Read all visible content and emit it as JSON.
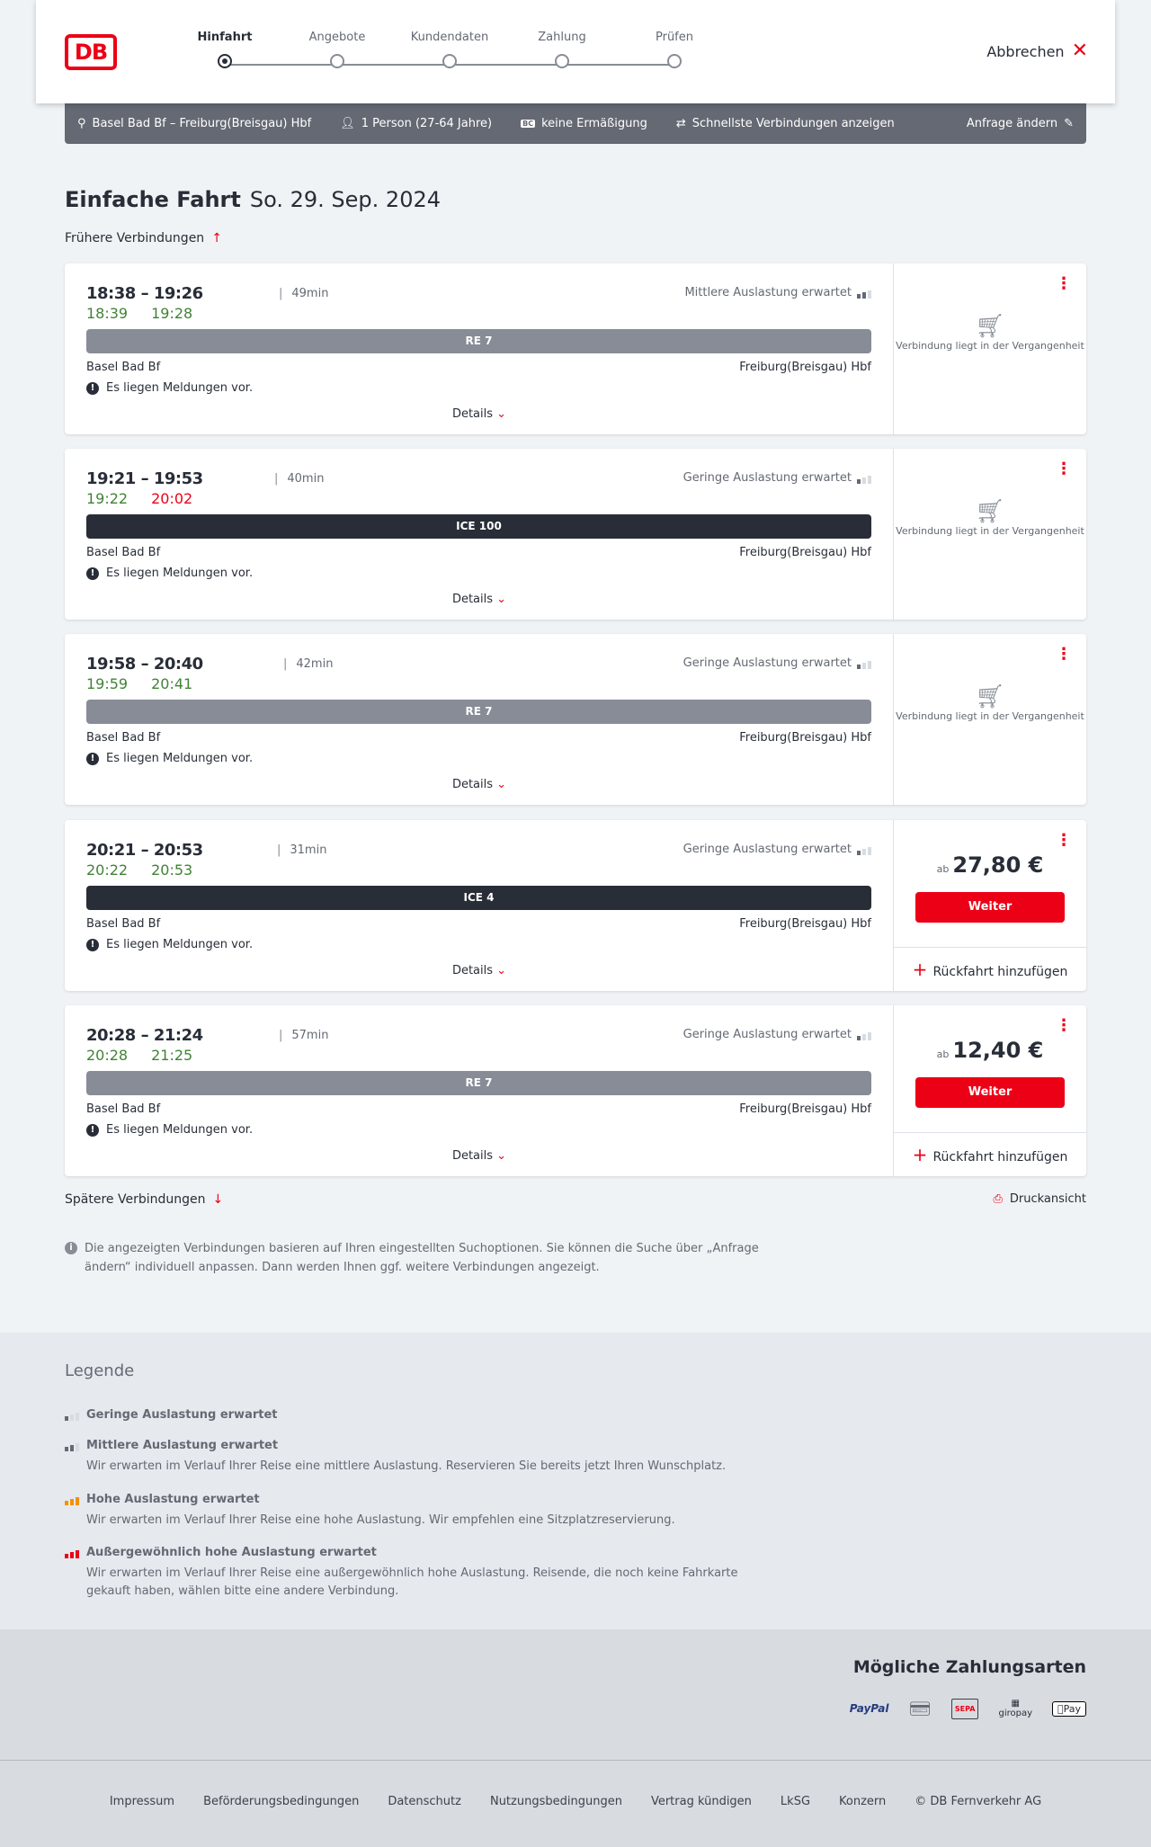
{
  "header": {
    "logo": "DB",
    "steps": [
      "Hinfahrt",
      "Angebote",
      "Kundendaten",
      "Zahlung",
      "Prüfen"
    ],
    "active_step": 0,
    "cancel": "Abbrechen"
  },
  "infobar": {
    "route": "Basel Bad Bf – Freiburg(Breisgau) Hbf",
    "travellers": "1 Person (27-64 Jahre)",
    "discount_badge": "BC",
    "discount": "keine Ermäßigung",
    "fastest": "Schnellste Verbindungen anzeigen",
    "edit": "Anfrage ändern"
  },
  "page": {
    "title": "Einfache Fahrt",
    "date": "So. 29. Sep. 2024",
    "earlier": "Frühere Verbindungen",
    "later": "Spätere Verbindungen",
    "print": "Druckansicht",
    "note": "Die angezeigten Verbindungen basieren auf Ihren eingestellten Suchoptionen. Sie können die Suche über „Anfrage ändern“ individuell anpassen. Dann werden Ihnen ggf. weitere Verbindungen angezeigt."
  },
  "labels": {
    "details": "Details",
    "messages": "Es liegen Meldungen vor.",
    "past": "Verbindung liegt in der Vergangenheit",
    "from_prefix": "ab",
    "continue": "Weiter",
    "add_return": "Rückfahrt hinzufügen"
  },
  "connections": [
    {
      "times": "18:38 – 19:26",
      "duration": "49min",
      "rt_dep": "18:39",
      "rt_dep_late": false,
      "rt_arr": "19:28",
      "rt_arr_late": false,
      "load": "Mittlere Auslastung erwartet",
      "load_level": 2,
      "train": "RE 7",
      "train_type": "re",
      "from": "Basel Bad Bf",
      "to": "Freiburg(Breisgau) Hbf",
      "price": null
    },
    {
      "times": "19:21 – 19:53",
      "duration": "40min",
      "rt_dep": "19:22",
      "rt_dep_late": false,
      "rt_arr": "20:02",
      "rt_arr_late": true,
      "load": "Geringe Auslastung erwartet",
      "load_level": 1,
      "train": "ICE 100",
      "train_type": "ice",
      "from": "Basel Bad Bf",
      "to": "Freiburg(Breisgau) Hbf",
      "price": null
    },
    {
      "times": "19:58 – 20:40",
      "duration": "42min",
      "rt_dep": "19:59",
      "rt_dep_late": false,
      "rt_arr": "20:41",
      "rt_arr_late": false,
      "load": "Geringe Auslastung erwartet",
      "load_level": 1,
      "train": "RE 7",
      "train_type": "re",
      "from": "Basel Bad Bf",
      "to": "Freiburg(Breisgau) Hbf",
      "price": null
    },
    {
      "times": "20:21 – 20:53",
      "duration": "31min",
      "rt_dep": "20:22",
      "rt_dep_late": false,
      "rt_arr": "20:53",
      "rt_arr_late": false,
      "load": "Geringe Auslastung erwartet",
      "load_level": 1,
      "train": "ICE 4",
      "train_type": "ice",
      "from": "Basel Bad Bf",
      "to": "Freiburg(Breisgau) Hbf",
      "price": "27,80 €"
    },
    {
      "times": "20:28 – 21:24",
      "duration": "57min",
      "rt_dep": "20:28",
      "rt_dep_late": false,
      "rt_arr": "21:25",
      "rt_arr_late": false,
      "load": "Geringe Auslastung erwartet",
      "load_level": 1,
      "train": "RE 7",
      "train_type": "re",
      "from": "Basel Bad Bf",
      "to": "Freiburg(Breisgau) Hbf",
      "price": "12,40 €"
    }
  ],
  "legend": {
    "title": "Legende",
    "items": [
      {
        "title": "Geringe Auslastung erwartet",
        "desc": "",
        "level": 1,
        "color": "#646973"
      },
      {
        "title": "Mittlere Auslastung erwartet",
        "desc": "Wir erwarten im Verlauf Ihrer Reise eine mittlere Auslastung. Reservieren Sie bereits jetzt Ihren Wunschplatz.",
        "level": 2,
        "color": "#646973"
      },
      {
        "title": "Hohe Auslastung erwartet",
        "desc": "Wir erwarten im Verlauf Ihrer Reise eine hohe Auslastung. Wir empfehlen eine Sitzplatzreservierung.",
        "level": 3,
        "color": "#f39200"
      },
      {
        "title": "Außergewöhnlich hohe Auslastung erwartet",
        "desc": "Wir erwarten im Verlauf Ihrer Reise eine außergewöhnlich hohe Auslastung. Reisende, die noch keine Fahrkarte gekauft haben, wählen bitte eine andere Verbindung.",
        "level": 4,
        "color": "#ec0016"
      }
    ]
  },
  "payment": {
    "title": "Mögliche Zahlungsarten",
    "methods": [
      "PayPal",
      "Kreditkarte",
      "SEPA",
      "giropay",
      "Pay"
    ]
  },
  "footer": {
    "links": [
      "Impressum",
      "Beförderungsbedingungen",
      "Datenschutz",
      "Nutzungsbedingungen",
      "Vertrag kündigen",
      "LkSG",
      "Konzern",
      "© DB Fernverkehr AG"
    ]
  },
  "colors": {
    "brand": "#ec0016",
    "on_time": "#408335",
    "infobar": "#646973"
  }
}
